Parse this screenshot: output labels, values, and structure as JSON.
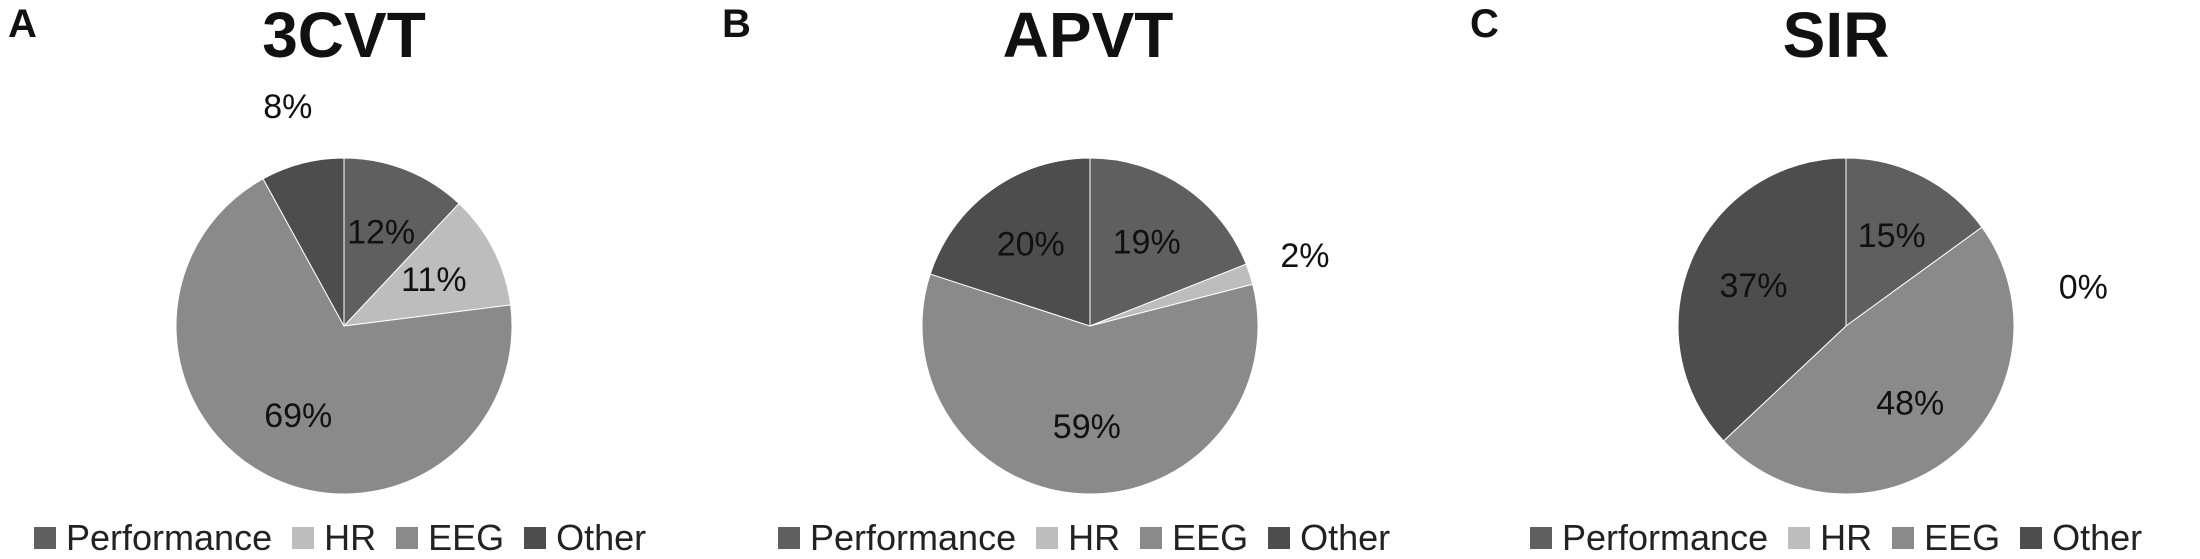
{
  "chart_data": [
    {
      "type": "pie",
      "panel": "A",
      "title": "3CVT",
      "categories": [
        "Performance",
        "HR",
        "EEG",
        "Other"
      ],
      "values": [
        12,
        11,
        69,
        8
      ],
      "labels": [
        "12%",
        "11%",
        "69%",
        "8%"
      ],
      "colors": [
        "#5f5f5f",
        "#bdbdbd",
        "#8a8a8a",
        "#4d4d4d"
      ],
      "legend": "bottom"
    },
    {
      "type": "pie",
      "panel": "B",
      "title": "APVT",
      "categories": [
        "Performance",
        "HR",
        "EEG",
        "Other"
      ],
      "values": [
        19,
        2,
        59,
        20
      ],
      "labels": [
        "19%",
        "2%",
        "59%",
        "20%"
      ],
      "colors": [
        "#5f5f5f",
        "#bdbdbd",
        "#8a8a8a",
        "#4d4d4d"
      ],
      "legend": "bottom"
    },
    {
      "type": "pie",
      "panel": "C",
      "title": "SIR",
      "categories": [
        "Performance",
        "HR",
        "EEG",
        "Other"
      ],
      "values": [
        15,
        0,
        48,
        37
      ],
      "labels": [
        "15%",
        "0%",
        "48%",
        "37%"
      ],
      "colors": [
        "#5f5f5f",
        "#bdbdbd",
        "#8a8a8a",
        "#4d4d4d"
      ],
      "legend": "bottom"
    }
  ]
}
